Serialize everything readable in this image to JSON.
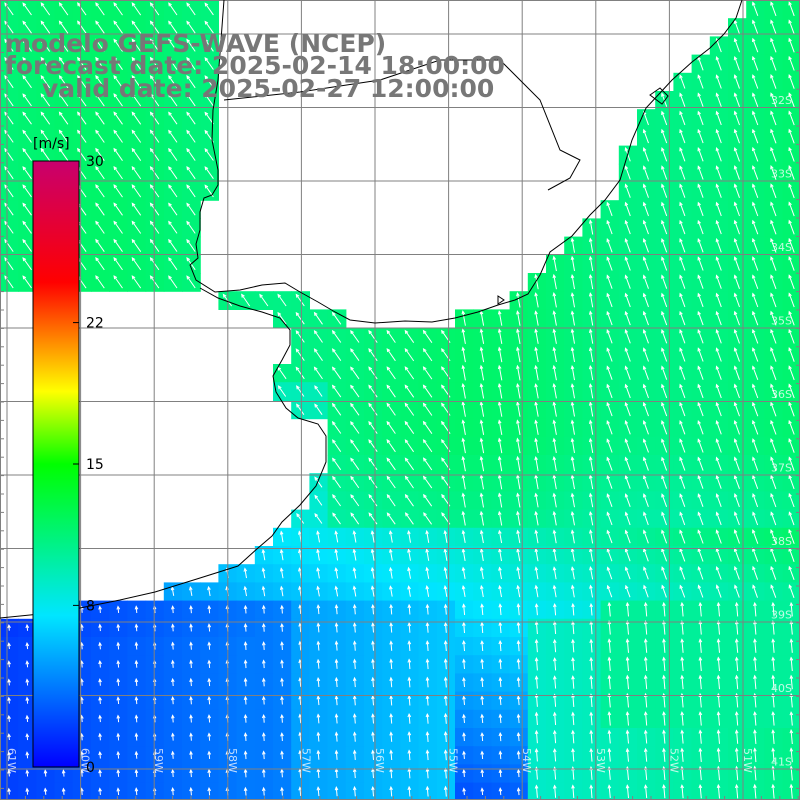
{
  "header": {
    "model": "modelo GEFS-WAVE (NCEP)",
    "forecast_date": "forecast date: 2025-02-14 18:00:00",
    "valid_date": "valid date: 2025-02-27 12:00:00"
  },
  "colorbar": {
    "unit": "[m/s]",
    "ticks": [
      {
        "value": 0,
        "label": "0"
      },
      {
        "value": 8,
        "label": "8"
      },
      {
        "value": 15,
        "label": "15"
      },
      {
        "value": 22,
        "label": "22"
      },
      {
        "value": 30,
        "label": "30"
      }
    ],
    "range": [
      0,
      30
    ],
    "colors": [
      "#0000ff",
      "#00e6ff",
      "#00ff00",
      "#ffff00",
      "#ff0000",
      "#c8006e"
    ]
  },
  "grid_labels": {
    "longitude": [
      "61W",
      "60W",
      "59W",
      "58W",
      "57W",
      "56W",
      "55W",
      "54W",
      "53W",
      "52W",
      "51W"
    ],
    "latitude": [
      "32S",
      "33S",
      "34S",
      "35S",
      "36S",
      "37S",
      "38S",
      "39S",
      "40S",
      "41S"
    ]
  },
  "colors": {
    "land": "#ffffff",
    "coast": "#000000",
    "grid": "#808080",
    "arrows": "#ffffff",
    "title": "#777777"
  }
}
